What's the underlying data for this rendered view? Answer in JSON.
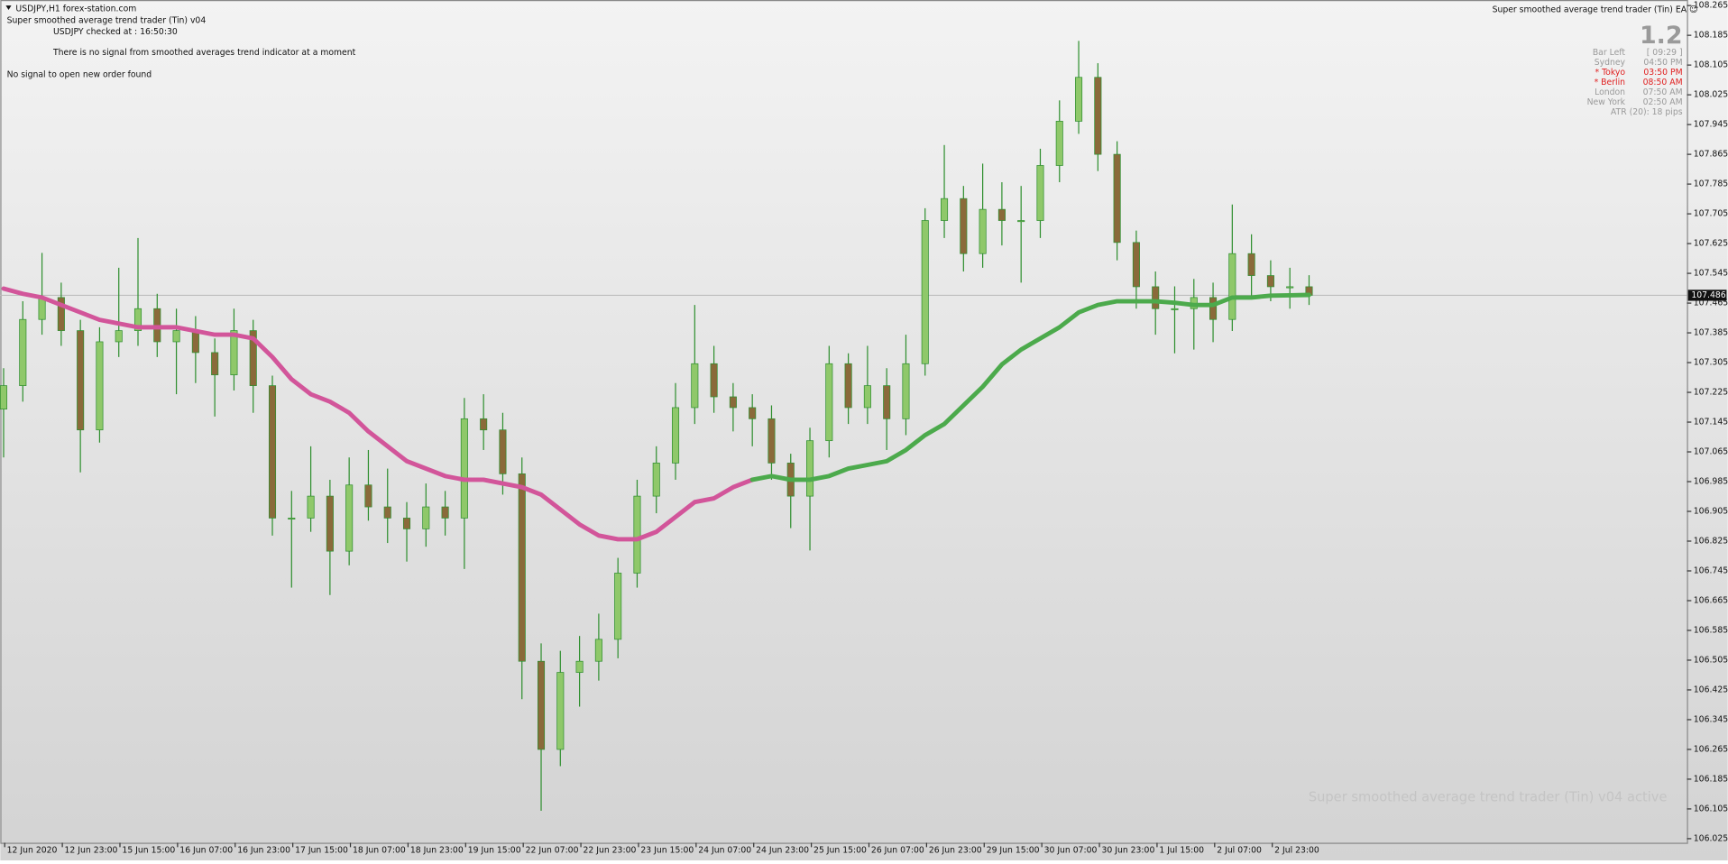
{
  "header": {
    "symbol": "USDJPY,H1  forex-station.com",
    "ea_name": "Super smoothed average trend trader (Tin) v04",
    "checked": "USDJPY checked at : 16:50:30",
    "signal_note": "There is no signal from smoothed averages trend indicator at a moment",
    "order_note": "No signal to open new order found"
  },
  "panel": {
    "title": "Super smoothed average trend trader (Tin) EA ☺",
    "version": "1.2",
    "rows": [
      [
        "Bar Left",
        "[ 09:29 ]"
      ],
      [
        "Sydney",
        "04:50 PM"
      ],
      [
        "* Tokyo",
        "03:50 PM"
      ],
      [
        "* Berlin",
        "08:50 AM"
      ],
      [
        "London",
        "07:50 AM"
      ],
      [
        "New York",
        "02:50 AM"
      ]
    ],
    "atr": "ATR (20): 18 pips"
  },
  "watermark": "Super smoothed average trend trader (Tin) v04 active",
  "chart_data": {
    "type": "candlestick",
    "x_labels": [
      "12 Jun 2020",
      "12 Jun 23:00",
      "15 Jun 15:00",
      "16 Jun 07:00",
      "16 Jun 23:00",
      "17 Jun 15:00",
      "18 Jun 07:00",
      "18 Jun 23:00",
      "19 Jun 15:00",
      "22 Jun 07:00",
      "22 Jun 23:00",
      "23 Jun 15:00",
      "24 Jun 07:00",
      "24 Jun 23:00",
      "25 Jun 15:00",
      "26 Jun 07:00",
      "26 Jun 23:00",
      "29 Jun 15:00",
      "30 Jun 07:00",
      "30 Jun 23:00",
      "1 Jul 15:00",
      "2 Jul 07:00",
      "2 Jul 23:00"
    ],
    "open": [
      107.18,
      107.243,
      107.421,
      107.48,
      107.391,
      107.124,
      107.361,
      107.391,
      107.45,
      107.361,
      107.391,
      107.332,
      107.272,
      107.391,
      107.243,
      106.887,
      106.887,
      106.946,
      106.798,
      106.976,
      106.917,
      106.887,
      106.858,
      106.917,
      106.887,
      107.154,
      107.124,
      107.006,
      106.502,
      106.265,
      106.472,
      106.502,
      106.561,
      106.739,
      106.946,
      107.035,
      107.184,
      107.302,
      107.213,
      107.184,
      107.154,
      107.035,
      106.946,
      107.095,
      107.302,
      107.184,
      107.243,
      107.154,
      107.302,
      107.687,
      107.746,
      107.598,
      107.717,
      107.687,
      107.687,
      107.835,
      107.954,
      108.072,
      107.865,
      107.628,
      107.509,
      107.45,
      107.45,
      107.48,
      107.421,
      107.598,
      107.539,
      107.509,
      107.509
    ],
    "high": [
      107.29,
      107.47,
      107.6,
      107.52,
      107.42,
      107.4,
      107.56,
      107.64,
      107.49,
      107.45,
      107.43,
      107.37,
      107.45,
      107.42,
      107.27,
      106.96,
      107.08,
      106.99,
      107.05,
      107.07,
      107.02,
      106.93,
      106.98,
      106.96,
      107.21,
      107.22,
      107.17,
      107.05,
      106.55,
      106.53,
      106.57,
      106.63,
      106.78,
      106.99,
      107.08,
      107.25,
      107.46,
      107.35,
      107.25,
      107.22,
      107.19,
      107.06,
      107.13,
      107.35,
      107.33,
      107.35,
      107.29,
      107.38,
      107.72,
      107.89,
      107.78,
      107.84,
      107.79,
      107.78,
      107.88,
      108.01,
      108.17,
      108.11,
      107.9,
      107.66,
      107.55,
      107.51,
      107.53,
      107.52,
      107.73,
      107.65,
      107.58,
      107.56,
      107.54
    ],
    "low": [
      107.05,
      107.2,
      107.38,
      107.35,
      107.01,
      107.09,
      107.32,
      107.35,
      107.32,
      107.22,
      107.25,
      107.16,
      107.23,
      107.17,
      106.84,
      106.7,
      106.85,
      106.68,
      106.76,
      106.88,
      106.82,
      106.77,
      106.81,
      106.84,
      106.75,
      107.07,
      106.95,
      106.4,
      106.1,
      106.22,
      106.38,
      106.45,
      106.51,
      106.7,
      106.9,
      106.99,
      107.14,
      107.17,
      107.12,
      107.08,
      106.99,
      106.86,
      106.8,
      107.05,
      107.14,
      107.14,
      107.07,
      107.11,
      107.27,
      107.64,
      107.55,
      107.56,
      107.62,
      107.52,
      107.64,
      107.79,
      107.92,
      107.82,
      107.58,
      107.45,
      107.38,
      107.33,
      107.34,
      107.36,
      107.39,
      107.48,
      107.47,
      107.45,
      107.46
    ],
    "close": [
      107.243,
      107.421,
      107.48,
      107.391,
      107.124,
      107.361,
      107.391,
      107.45,
      107.361,
      107.391,
      107.332,
      107.272,
      107.391,
      107.243,
      106.887,
      106.887,
      106.946,
      106.798,
      106.976,
      106.917,
      106.887,
      106.858,
      106.917,
      106.887,
      107.154,
      107.124,
      107.006,
      106.502,
      106.265,
      106.472,
      106.502,
      106.561,
      106.739,
      106.946,
      107.035,
      107.184,
      107.302,
      107.213,
      107.184,
      107.154,
      107.035,
      106.946,
      107.095,
      107.302,
      107.184,
      107.243,
      107.154,
      107.302,
      107.687,
      107.746,
      107.598,
      107.717,
      107.687,
      107.687,
      107.835,
      107.954,
      108.072,
      107.865,
      107.628,
      107.509,
      107.45,
      107.45,
      107.48,
      107.421,
      107.598,
      107.539,
      107.509,
      107.509,
      107.486
    ],
    "ma_segments": [
      {
        "color": "#d2559a",
        "values": [
          107.504,
          107.49,
          107.48,
          107.46,
          107.44,
          107.42,
          107.41,
          107.4,
          107.4,
          107.4,
          107.39,
          107.38,
          107.38,
          107.37,
          107.32,
          107.26,
          107.22,
          107.2,
          107.17,
          107.12,
          107.08,
          107.04,
          107.02,
          107.0,
          106.99,
          106.99,
          106.98,
          106.97,
          106.95,
          106.91,
          106.87,
          106.84,
          106.83,
          106.83,
          106.85,
          106.89,
          106.93,
          106.94,
          106.97,
          106.99,
          null,
          null,
          null,
          null,
          null,
          null,
          null,
          null,
          null,
          null,
          null,
          null,
          null,
          null,
          null,
          null,
          null,
          null,
          null,
          null,
          null,
          null,
          null,
          null,
          null,
          null,
          null,
          null,
          null
        ]
      },
      {
        "color": "#4caa4c",
        "values": [
          null,
          null,
          null,
          null,
          null,
          null,
          null,
          null,
          null,
          null,
          null,
          null,
          null,
          null,
          null,
          null,
          null,
          null,
          null,
          null,
          null,
          null,
          null,
          null,
          null,
          null,
          null,
          null,
          null,
          null,
          null,
          null,
          null,
          null,
          null,
          null,
          null,
          null,
          null,
          106.99,
          107.0,
          106.99,
          106.99,
          107.0,
          107.02,
          107.03,
          107.04,
          107.07,
          107.11,
          107.14,
          107.19,
          107.24,
          107.3,
          107.34,
          107.37,
          107.4,
          107.44,
          107.46,
          107.47,
          107.47,
          107.47,
          107.466,
          107.46,
          107.46,
          107.48,
          107.48,
          107.485,
          107.486,
          107.487
        ]
      }
    ],
    "up_color": "#8fc86a",
    "down_color": "#8a6a3a",
    "wick_color": "#2f8f2f",
    "current_price": 107.486,
    "ylim": [
      106.014,
      108.274
    ],
    "yticks": [
      108.265,
      108.185,
      108.105,
      108.025,
      107.945,
      107.865,
      107.785,
      107.705,
      107.625,
      107.545,
      107.465,
      107.385,
      107.305,
      107.225,
      107.145,
      107.065,
      106.985,
      106.905,
      106.825,
      106.745,
      106.665,
      106.585,
      106.505,
      106.425,
      106.345,
      106.265,
      106.185,
      106.105,
      106.025
    ]
  }
}
